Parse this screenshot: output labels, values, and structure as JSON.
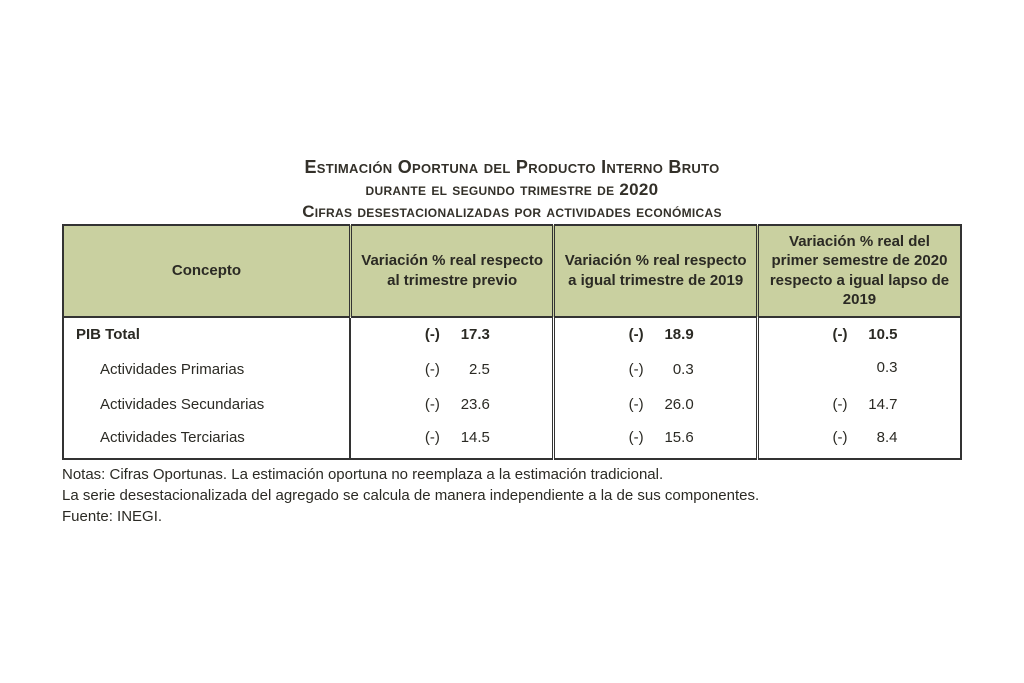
{
  "title": {
    "line1": "Estimación Oportuna del Producto Interno Bruto",
    "line2": "durante el segundo trimestre de 2020",
    "line3": "Cifras desestacionalizadas por actividades económicas"
  },
  "table": {
    "columns": [
      "Concepto",
      "Variación % real respecto al trimestre previo",
      "Variación % real respecto a igual trimestre de 2019",
      "Variación % real del primer semestre de 2020 respecto a igual lapso de 2019"
    ],
    "header_bg": "#c9d0a0",
    "border_color": "#333333",
    "text_color": "#2b2a24",
    "rows": [
      {
        "label": "PIB Total",
        "bold": true,
        "indent": false,
        "v1_sign": "(-)",
        "v1_num": "17.3",
        "v2_sign": "(-)",
        "v2_num": "18.9",
        "v3_sign": "(-)",
        "v3_num": "10.5"
      },
      {
        "label": "Actividades Primarias",
        "bold": false,
        "indent": true,
        "v1_sign": "(-)",
        "v1_num": "2.5",
        "v2_sign": "(-)",
        "v2_num": "0.3",
        "v3_sign": "",
        "v3_num": "0.3"
      },
      {
        "label": "Actividades Secundarias",
        "bold": false,
        "indent": true,
        "v1_sign": "(-)",
        "v1_num": "23.6",
        "v2_sign": "(-)",
        "v2_num": "26.0",
        "v3_sign": "(-)",
        "v3_num": "14.7"
      },
      {
        "label": "Actividades Terciarias",
        "bold": false,
        "indent": true,
        "v1_sign": "(-)",
        "v1_num": "14.5",
        "v2_sign": "(-)",
        "v2_num": "15.6",
        "v3_sign": "(-)",
        "v3_num": "8.4"
      }
    ]
  },
  "notes": {
    "line1": "Notas: Cifras Oportunas. La estimación oportuna no reemplaza a la estimación tradicional.",
    "line2": "La serie desestacionalizada del agregado se calcula de manera independiente a la de sus componentes.",
    "line3": "Fuente: INEGI."
  }
}
